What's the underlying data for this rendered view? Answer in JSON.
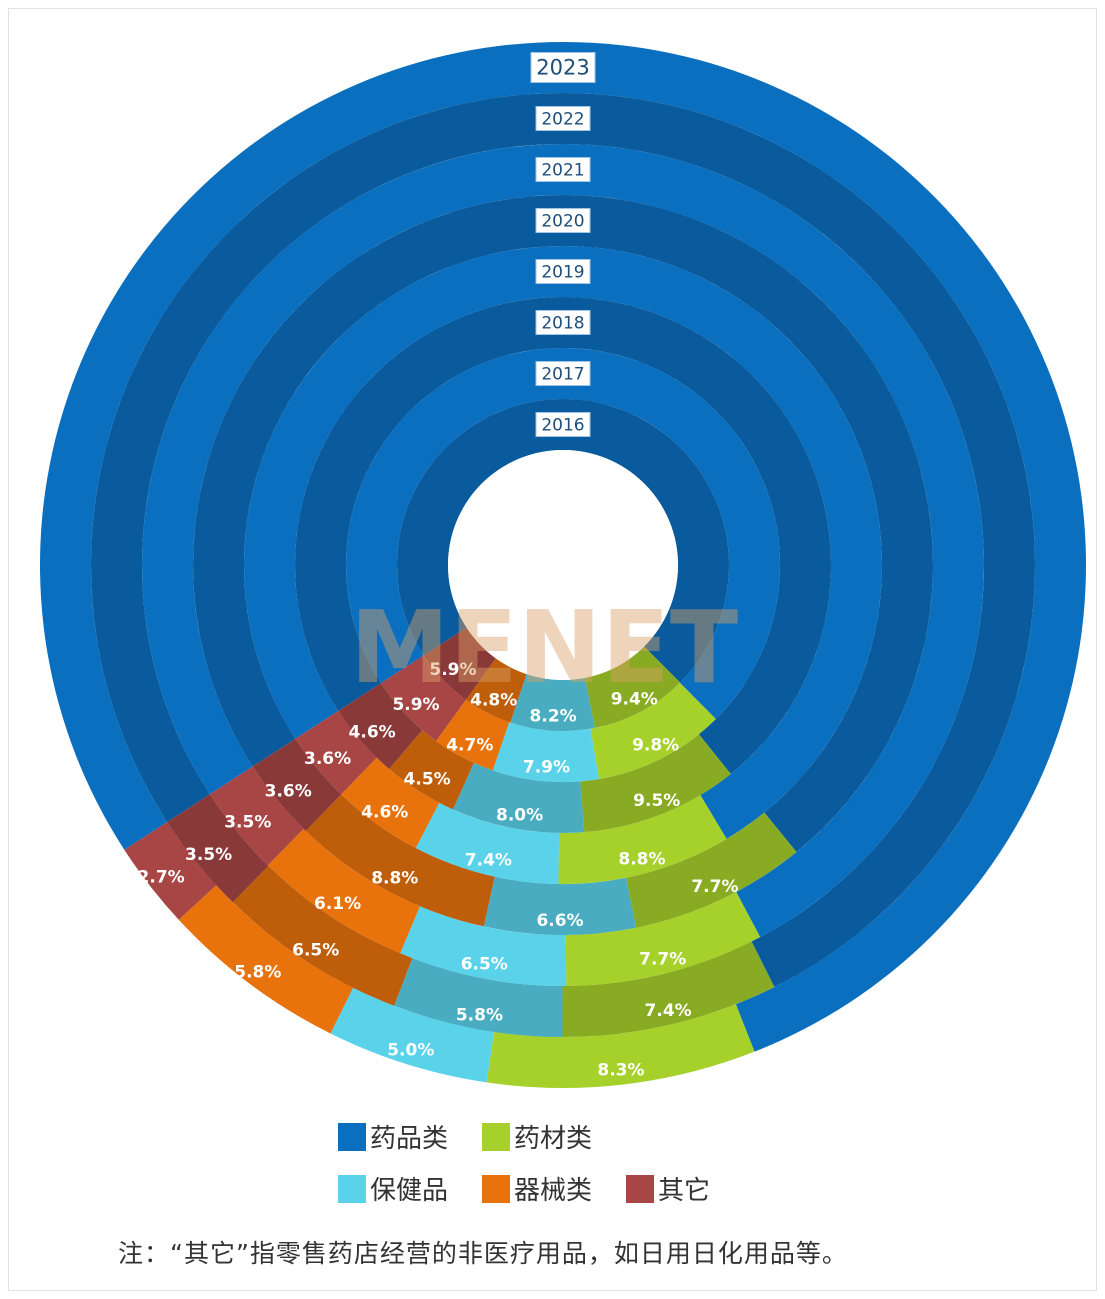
{
  "chart_data": {
    "type": "radial-stacked-bar",
    "title": "",
    "years": [
      "2023",
      "2022",
      "2021",
      "2020",
      "2019",
      "2018",
      "2017",
      "2016"
    ],
    "series": [
      {
        "name": "药品类",
        "color": "#0b6fbf",
        "values": [
          78.2,
          76.7,
          77.1,
          73.3,
          75.6,
          73.4,
          71.8,
          71.7
        ],
        "labels": [
          "78.2%",
          "76.7%",
          "77.1%",
          "73.3%",
          "75.6%",
          "73.4%",
          "71.8%",
          "71.7%"
        ]
      },
      {
        "name": "药材类",
        "color": "#a6d12b",
        "values": [
          8.3,
          7.4,
          7.7,
          7.7,
          8.8,
          9.5,
          9.8,
          9.4
        ],
        "labels": [
          "8.3%",
          "7.4%",
          "7.7%",
          "7.7%",
          "8.8%",
          "9.5%",
          "9.8%",
          "9.4%"
        ]
      },
      {
        "name": "保健品",
        "color": "#5ad2ea",
        "values": [
          5.0,
          5.8,
          6.5,
          6.6,
          7.4,
          8.0,
          7.9,
          8.2
        ],
        "labels": [
          "5.0%",
          "5.8%",
          "6.5%",
          "6.6%",
          "7.4%",
          "8.0%",
          "7.9%",
          "8.2%"
        ]
      },
      {
        "name": "器械类",
        "color": "#e8720c",
        "values": [
          5.8,
          6.5,
          6.1,
          8.8,
          4.6,
          4.5,
          4.7,
          4.8
        ],
        "labels": [
          "5.8%",
          "6.5%",
          "6.1%",
          "8.8%",
          "4.6%",
          "4.5%",
          "4.7%",
          "4.8%"
        ]
      },
      {
        "name": "其它",
        "color": "#a84545",
        "values": [
          2.7,
          3.5,
          3.5,
          3.6,
          3.6,
          4.6,
          5.9,
          5.9
        ],
        "labels": [
          "2.7%",
          "3.5%",
          "3.5%",
          "3.6%",
          "3.6%",
          "4.6%",
          "5.9%",
          "5.9%"
        ]
      }
    ],
    "watermark": "MENET"
  },
  "legend": {
    "row1": [
      "药品类",
      "药材类"
    ],
    "row2": [
      "保健品",
      "器械类",
      "其它"
    ]
  },
  "note": "注：“其它”指零售药店经营的非医疗用品，如日用日化用品等。"
}
